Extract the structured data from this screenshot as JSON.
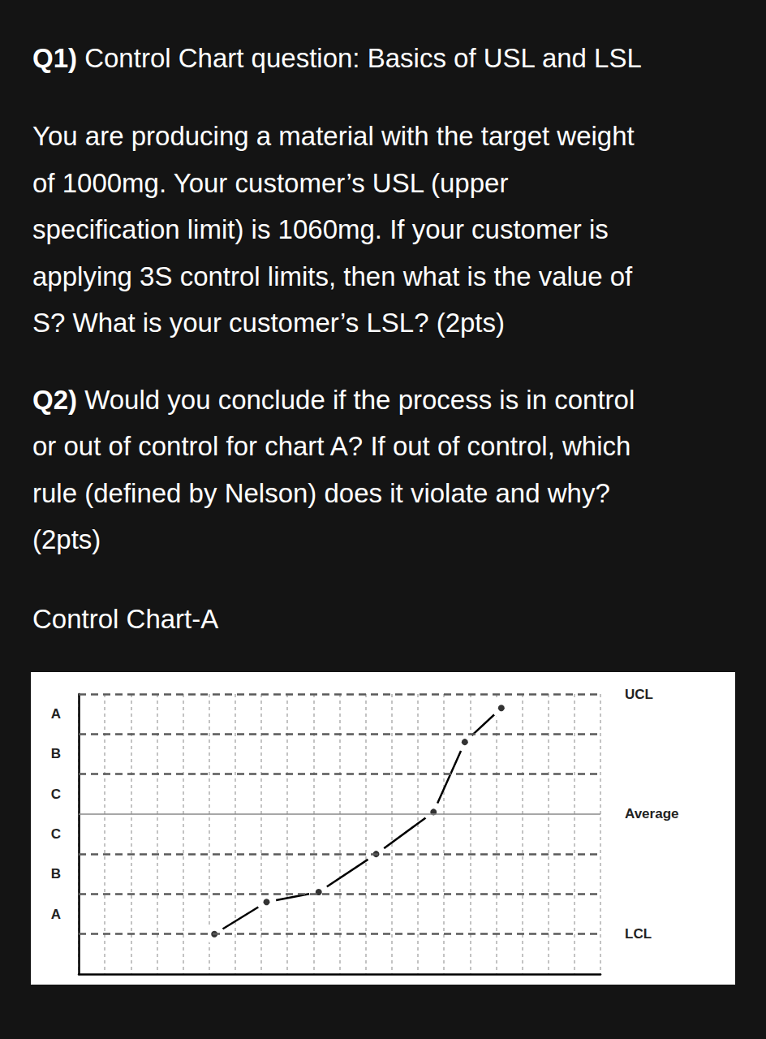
{
  "document": {
    "q1": {
      "label": "Q1)",
      "first_line": " Control Chart question: Basics of USL and LSL",
      "lines": [
        "You are producing a material with the target weight",
        "of 1000mg. Your customer’s USL (upper",
        "specification limit) is 1060mg. If your customer is",
        "applying 3S control limits, then what is the value of",
        "S? What is your customer’s LSL? (2pts)"
      ]
    },
    "q2": {
      "label": "Q2)",
      "first_line": " Would you conclude if the process is in control",
      "lines": [
        "or out of control for chart A? If out of control, which",
        "rule (defined by Nelson) does it violate and why?",
        "(2pts)"
      ]
    },
    "chart_heading": "Control Chart-A"
  },
  "chart_data": {
    "type": "line",
    "x": [
      2.6,
      3.6,
      4.6,
      5.7,
      6.8,
      7.4,
      8.1
    ],
    "values": [
      -3,
      -2.2,
      -1.95,
      -1,
      0.05,
      1.8,
      2.65
    ],
    "color": "#000000",
    "marker": "circled_dot",
    "xlim": [
      0,
      10
    ],
    "xticks": [
      0,
      0.5,
      1,
      1.5,
      2,
      2.5,
      3,
      3.5,
      4,
      4.5,
      5,
      5.5,
      6,
      6.5,
      7,
      7.5,
      8,
      8.5,
      9,
      9.5,
      10
    ],
    "ylim": [
      -4,
      3
    ],
    "yticks": [
      -3,
      -2,
      -1,
      0,
      1,
      2,
      3
    ],
    "grid": true,
    "tick_labels": false,
    "zone_labels": [
      {
        "value": 2.5,
        "label": "A"
      },
      {
        "value": 1.5,
        "label": "B"
      },
      {
        "value": 0.5,
        "label": "C"
      },
      {
        "value": -0.5,
        "label": "C"
      },
      {
        "value": -1.5,
        "label": "B"
      },
      {
        "value": -2.5,
        "label": "A"
      }
    ],
    "control_lines": [
      {
        "value": 3,
        "label": "UCL",
        "line_style": "dashed"
      },
      {
        "value": 0,
        "label": "Average",
        "line_style": "solid"
      },
      {
        "value": -3,
        "label": "LCL",
        "line_style": "dashed"
      }
    ]
  }
}
